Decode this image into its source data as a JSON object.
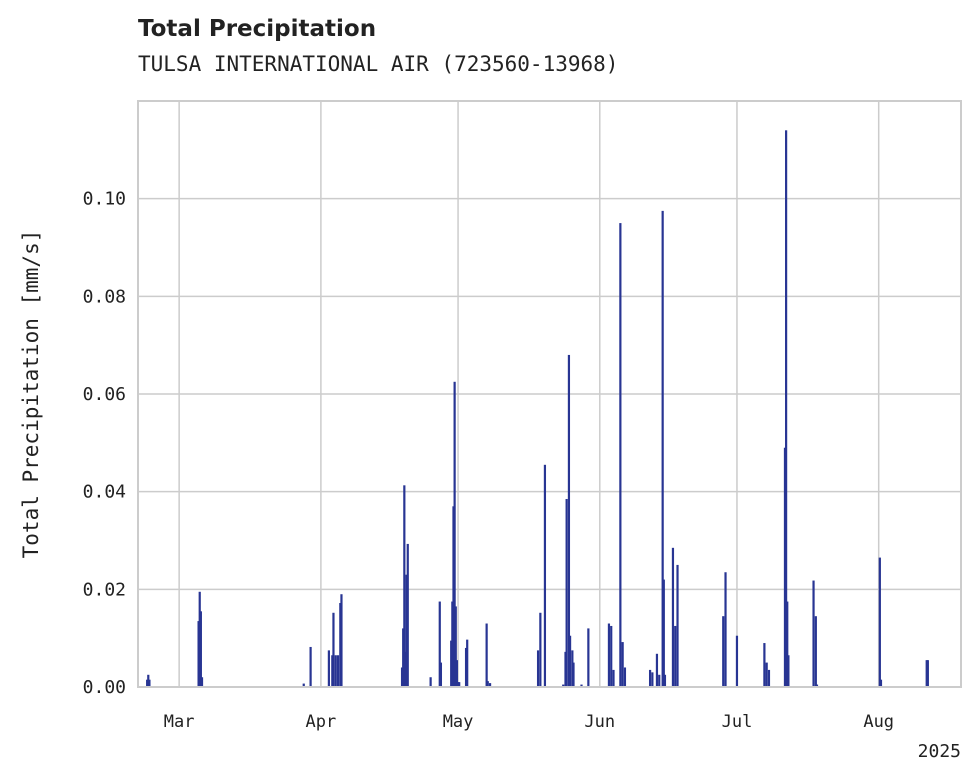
{
  "title": "Total Precipitation",
  "subtitle": "TULSA INTERNATIONAL AIR (723560-13968)",
  "chart_data": {
    "type": "bar",
    "title": "Total Precipitation",
    "subtitle": "TULSA INTERNATIONAL AIR (723560-13968)",
    "xlabel": "",
    "ylabel": "Total Precipitation [mm/s]",
    "year_label": "2025",
    "xlim": [
      "2025-02-20",
      "2025-08-19"
    ],
    "ylim": [
      0,
      0.12
    ],
    "yticks": [
      "0.00",
      "0.02",
      "0.04",
      "0.06",
      "0.08",
      "0.10"
    ],
    "ytick_values": [
      0,
      0.02,
      0.04,
      0.06,
      0.08,
      0.1
    ],
    "xticks": [
      {
        "date": "2025-03-01",
        "label": "Mar"
      },
      {
        "date": "2025-04-01",
        "label": "Apr"
      },
      {
        "date": "2025-05-01",
        "label": "May"
      },
      {
        "date": "2025-06-01",
        "label": "Jun"
      },
      {
        "date": "2025-07-01",
        "label": "Jul"
      },
      {
        "date": "2025-08-01",
        "label": "Aug"
      }
    ],
    "grid": true,
    "bar_color": "#283593",
    "x": [
      "2025-02-22T00:00",
      "2025-02-22T06:00",
      "2025-02-22T12:00",
      "2025-03-05T06:00",
      "2025-03-05T12:00",
      "2025-03-05T18:00",
      "2025-03-06T00:00",
      "2025-03-28T06:00",
      "2025-03-29T18:00",
      "2025-04-02T18:00",
      "2025-04-03T12:00",
      "2025-04-03T18:00",
      "2025-04-04T06:00",
      "2025-04-04T18:00",
      "2025-04-05T06:00",
      "2025-04-05T12:00",
      "2025-04-18T18:00",
      "2025-04-19T00:00",
      "2025-04-19T06:00",
      "2025-04-19T12:00",
      "2025-04-19T18:00",
      "2025-04-20T00:00",
      "2025-04-25T00:00",
      "2025-04-27T00:00",
      "2025-04-27T06:00",
      "2025-04-29T12:00",
      "2025-04-29T18:00",
      "2025-04-30T00:00",
      "2025-04-30T06:00",
      "2025-04-30T12:00",
      "2025-04-30T18:00",
      "2025-05-01T00:00",
      "2025-05-01T06:00",
      "2025-05-02T18:00",
      "2025-05-03T00:00",
      "2025-05-07T06:00",
      "2025-05-07T12:00",
      "2025-05-08T00:00",
      "2025-05-18T12:00",
      "2025-05-19T00:00",
      "2025-05-20T00:00",
      "2025-05-24T00:00",
      "2025-05-24T12:00",
      "2025-05-24T18:00",
      "2025-05-25T06:00",
      "2025-05-25T12:00",
      "2025-05-26T00:00",
      "2025-05-26T06:00",
      "2025-05-28T00:00",
      "2025-05-29T12:00",
      "2025-06-03T00:00",
      "2025-06-03T12:00",
      "2025-06-04T00:00",
      "2025-06-05T12:00",
      "2025-06-06T00:00",
      "2025-06-06T12:00",
      "2025-06-12T00:00",
      "2025-06-12T12:00",
      "2025-06-13T12:00",
      "2025-06-14T00:00",
      "2025-06-14T18:00",
      "2025-06-15T00:00",
      "2025-06-15T06:00",
      "2025-06-17T00:00",
      "2025-06-17T12:00",
      "2025-06-18T00:00",
      "2025-06-28T00:00",
      "2025-06-28T12:00",
      "2025-07-01T00:00",
      "2025-07-07T00:00",
      "2025-07-07T12:00",
      "2025-07-08T00:00",
      "2025-07-11T12:00",
      "2025-07-11T18:00",
      "2025-07-12T00:00",
      "2025-07-12T06:00",
      "2025-07-17T18:00",
      "2025-07-18T06:00",
      "2025-07-18T12:00",
      "2025-08-01T06:00",
      "2025-08-01T12:00",
      "2025-08-11T12:00",
      "2025-08-11T18:00"
    ],
    "values": [
      0.0015,
      0.0025,
      0.0015,
      0.0135,
      0.0195,
      0.0155,
      0.002,
      0.0007,
      0.0082,
      0.0075,
      0.0065,
      0.0152,
      0.0065,
      0.0065,
      0.0172,
      0.019,
      0.004,
      0.012,
      0.0413,
      0.0072,
      0.023,
      0.0293,
      0.002,
      0.0175,
      0.005,
      0.0095,
      0.0175,
      0.037,
      0.0625,
      0.0165,
      0.0055,
      0.001,
      0.001,
      0.008,
      0.0097,
      0.013,
      0.0012,
      0.0008,
      0.0075,
      0.0152,
      0.0455,
      0.0005,
      0.0072,
      0.0385,
      0.068,
      0.0105,
      0.0075,
      0.005,
      0.0005,
      0.012,
      0.013,
      0.0125,
      0.0035,
      0.095,
      0.0092,
      0.004,
      0.0035,
      0.003,
      0.0068,
      0.0025,
      0.0975,
      0.022,
      0.0025,
      0.0285,
      0.0125,
      0.025,
      0.0145,
      0.0235,
      0.0105,
      0.009,
      0.005,
      0.0035,
      0.049,
      0.114,
      0.0175,
      0.0065,
      0.0218,
      0.0145,
      0.0005,
      0.0265,
      0.0015,
      0.0055,
      0.0055
    ]
  }
}
